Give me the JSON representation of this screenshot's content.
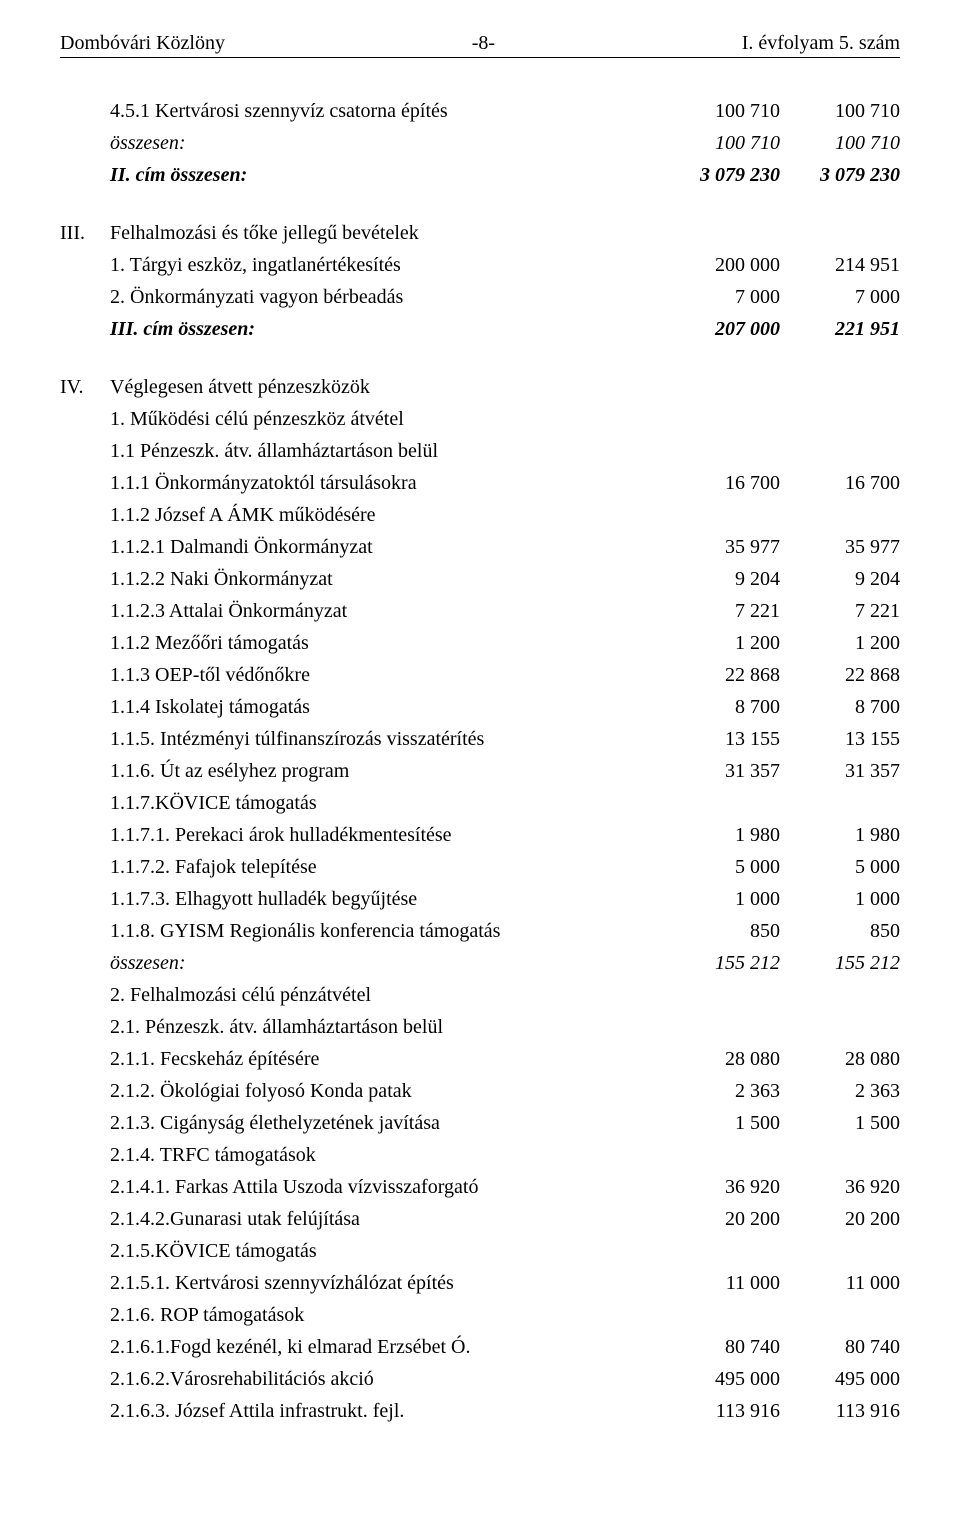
{
  "header": {
    "left": "Dombóvári Közlöny",
    "center": "-8-",
    "right": "I. évfolyam 5. szám"
  },
  "sections": [
    {
      "rows": [
        {
          "roman": "",
          "label": "4.5.1 Kertvárosi szennyvíz csatorna építés",
          "c1": "100 710",
          "c2": "100 710",
          "style": ""
        },
        {
          "roman": "",
          "label": "összesen:",
          "c1": "100 710",
          "c2": "100 710",
          "style": "italic"
        },
        {
          "roman": "",
          "label": "II. cím összesen:",
          "c1": "3 079 230",
          "c2": "3 079 230",
          "style": "bold-italic"
        }
      ]
    },
    {
      "rows": [
        {
          "roman": "III.",
          "label": "Felhalmozási és tőke jellegű bevételek",
          "c1": "",
          "c2": "",
          "style": ""
        },
        {
          "roman": "",
          "label": "1. Tárgyi eszköz, ingatlanértékesítés",
          "c1": "200 000",
          "c2": "214 951",
          "style": ""
        },
        {
          "roman": "",
          "label": "2. Önkormányzati vagyon bérbeadás",
          "c1": "7 000",
          "c2": "7 000",
          "style": ""
        },
        {
          "roman": "",
          "label": "III. cím összesen:",
          "c1": "207 000",
          "c2": "221 951",
          "style": "bold-italic"
        }
      ]
    },
    {
      "rows": [
        {
          "roman": "IV.",
          "label": "Véglegesen átvett pénzeszközök",
          "c1": "",
          "c2": "",
          "style": ""
        },
        {
          "roman": "",
          "label": "1. Működési célú pénzeszköz átvétel",
          "c1": "",
          "c2": "",
          "style": ""
        },
        {
          "roman": "",
          "label": "1.1 Pénzeszk. átv. államháztartáson belül",
          "c1": "",
          "c2": "",
          "style": ""
        },
        {
          "roman": "",
          "label": "1.1.1 Önkormányzatoktól társulásokra",
          "c1": "16 700",
          "c2": "16 700",
          "style": ""
        },
        {
          "roman": "",
          "label": "1.1.2 József A ÁMK működésére",
          "c1": "",
          "c2": "",
          "style": ""
        },
        {
          "roman": "",
          "label": "1.1.2.1 Dalmandi Önkormányzat",
          "c1": "35 977",
          "c2": "35 977",
          "style": ""
        },
        {
          "roman": "",
          "label": "1.1.2.2 Naki Önkormányzat",
          "c1": "9 204",
          "c2": "9 204",
          "style": ""
        },
        {
          "roman": "",
          "label": "1.1.2.3 Attalai Önkormányzat",
          "c1": "7 221",
          "c2": "7 221",
          "style": ""
        },
        {
          "roman": "",
          "label": "1.1.2 Mezőőri támogatás",
          "c1": "1 200",
          "c2": "1 200",
          "style": ""
        },
        {
          "roman": "",
          "label": "1.1.3 OEP-től védőnőkre",
          "c1": "22 868",
          "c2": "22 868",
          "style": ""
        },
        {
          "roman": "",
          "label": "1.1.4 Iskolatej támogatás",
          "c1": "8 700",
          "c2": "8 700",
          "style": ""
        },
        {
          "roman": "",
          "label": "1.1.5. Intézményi túlfinanszírozás visszatérítés",
          "c1": "13 155",
          "c2": "13 155",
          "style": ""
        },
        {
          "roman": "",
          "label": "1.1.6. Út az esélyhez program",
          "c1": "31 357",
          "c2": "31 357",
          "style": ""
        },
        {
          "roman": "",
          "label": "1.1.7.KÖVICE támogatás",
          "c1": "",
          "c2": "",
          "style": ""
        },
        {
          "roman": "",
          "label": "1.1.7.1. Perekaci árok hulladékmentesítése",
          "c1": "1 980",
          "c2": "1 980",
          "style": ""
        },
        {
          "roman": "",
          "label": "1.1.7.2. Fafajok telepítése",
          "c1": "5 000",
          "c2": "5 000",
          "style": ""
        },
        {
          "roman": "",
          "label": "1.1.7.3. Elhagyott hulladék begyűjtése",
          "c1": "1 000",
          "c2": "1 000",
          "style": ""
        },
        {
          "roman": "",
          "label": "1.1.8. GYISM Regionális konferencia támogatás",
          "c1": "850",
          "c2": "850",
          "style": ""
        },
        {
          "roman": "",
          "label": "összesen:",
          "c1": "155 212",
          "c2": "155 212",
          "style": "italic"
        },
        {
          "roman": "",
          "label": "2. Felhalmozási célú pénzátvétel",
          "c1": "",
          "c2": "",
          "style": ""
        },
        {
          "roman": "",
          "label": "2.1. Pénzeszk. átv. államháztartáson belül",
          "c1": "",
          "c2": "",
          "style": ""
        },
        {
          "roman": "",
          "label": "2.1.1. Fecskeház építésére",
          "c1": "28 080",
          "c2": "28 080",
          "style": ""
        },
        {
          "roman": "",
          "label": "2.1.2. Ökológiai folyosó Konda patak",
          "c1": "2 363",
          "c2": "2 363",
          "style": ""
        },
        {
          "roman": "",
          "label": "2.1.3. Cigányság élethelyzetének javítása",
          "c1": "1 500",
          "c2": "1 500",
          "style": ""
        },
        {
          "roman": "",
          "label": "2.1.4. TRFC támogatások",
          "c1": "",
          "c2": "",
          "style": ""
        },
        {
          "roman": "",
          "label": "2.1.4.1. Farkas Attila Uszoda vízvisszaforgató",
          "c1": "36 920",
          "c2": "36 920",
          "style": ""
        },
        {
          "roman": "",
          "label": "2.1.4.2.Gunarasi utak felújítása",
          "c1": "20 200",
          "c2": "20 200",
          "style": ""
        },
        {
          "roman": "",
          "label": "2.1.5.KÖVICE támogatás",
          "c1": "",
          "c2": "",
          "style": ""
        },
        {
          "roman": "",
          "label": "2.1.5.1. Kertvárosi szennyvízhálózat építés",
          "c1": "11 000",
          "c2": "11 000",
          "style": ""
        },
        {
          "roman": "",
          "label": "2.1.6. ROP támogatások",
          "c1": "",
          "c2": "",
          "style": ""
        },
        {
          "roman": "",
          "label": "2.1.6.1.Fogd kezénél, ki elmarad Erzsébet Ó.",
          "c1": "80 740",
          "c2": "80 740",
          "style": ""
        },
        {
          "roman": "",
          "label": "2.1.6.2.Városrehabilitációs akció",
          "c1": "495 000",
          "c2": "495 000",
          "style": ""
        },
        {
          "roman": "",
          "label": "2.1.6.3. József Attila infrastrukt. fejl.",
          "c1": "113 916",
          "c2": "113 916",
          "style": ""
        }
      ]
    }
  ]
}
